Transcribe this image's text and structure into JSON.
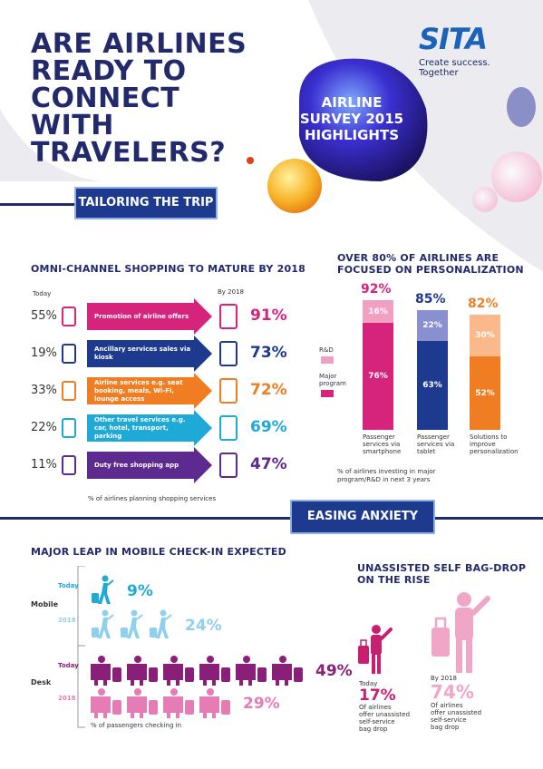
{
  "header": {
    "title_lines": [
      "ARE AIRLINES",
      "READY TO CONNECT",
      "WITH TRAVELERS?"
    ],
    "logo_name": "SITA",
    "logo_tagline": "Create success. Together",
    "bubble_lines": [
      "AIRLINE",
      "SURVEY 2015",
      "HIGHLIGHTS"
    ]
  },
  "colors": {
    "navy": "#232a6b",
    "pink": "#d6247c",
    "blue": "#1d3a8f",
    "orange": "#f07d22",
    "cyan": "#1fa9d6",
    "purple": "#5d2a8f",
    "light_pink": "#f2a0c2"
  },
  "section1": {
    "pill": "TAILORING THE TRIP",
    "omni": {
      "heading": "OMNI-CHANNEL SHOPPING TO MATURE BY 2018",
      "today_label": "Today",
      "by2018_label": "By 2018",
      "footnote": "% of airlines planning shopping services",
      "rows": [
        {
          "today": "55%",
          "label": "Promotion of airline offers",
          "by2018": "91%",
          "color": "#d6247c",
          "icon": "smartphone-plane-icon"
        },
        {
          "today": "19%",
          "label": "Ancillary services sales via kiosk",
          "by2018": "73%",
          "color": "#1d3a8f",
          "icon": "kiosk-icon"
        },
        {
          "today": "33%",
          "label": "Airline services e.g. seat booking, meals, Wi-Fi, lounge access",
          "by2018": "72%",
          "color": "#f07d22",
          "icon": "wifi-tablet-icon"
        },
        {
          "today": "22%",
          "label": "Other travel services e.g. car, hotel, transport, parking",
          "by2018": "69%",
          "color": "#1fa9d6",
          "icon": "parking-icon"
        },
        {
          "today": "11%",
          "label": "Duty free shopping app",
          "by2018": "47%",
          "color": "#5d2a8f",
          "icon": "shopping-bag-icon"
        }
      ]
    },
    "personalization": {
      "heading_lines": [
        "OVER 80% OF AIRLINES ARE",
        "FOCUSED ON PERSONALIZATION"
      ],
      "legend": [
        {
          "label": "R&D",
          "color": "#f2a0c2"
        },
        {
          "label": "Major program",
          "color": "#d6247c"
        }
      ],
      "footnote": "% of airlines investing in major program/R&D in next 3 years",
      "bars": [
        {
          "total": "92%",
          "rd": "16%",
          "major": "76%",
          "rd_value": 16,
          "major_value": 76,
          "label": "Passenger services via smartphone",
          "top_color": "#f2a0c2",
          "bottom_color": "#d6247c",
          "text_color": "#d6247c"
        },
        {
          "total": "85%",
          "rd": "22%",
          "major": "63%",
          "rd_value": 22,
          "major_value": 63,
          "label": "Passenger services via tablet",
          "top_color": "#8a8fd0",
          "bottom_color": "#1d3a8f",
          "text_color": "#1d3a8f"
        },
        {
          "total": "82%",
          "rd": "30%",
          "major": "52%",
          "rd_value": 30,
          "major_value": 52,
          "label": "Solutions to improve personalization",
          "top_color": "#f9b98a",
          "bottom_color": "#f07d22",
          "text_color": "#f07d22"
        }
      ]
    }
  },
  "section2": {
    "pill": "EASING ANXIETY",
    "checkin": {
      "heading": "MAJOR LEAP IN MOBILE CHECK-IN EXPECTED",
      "footnote": "% of passengers checking in",
      "groups": [
        {
          "name": "Mobile",
          "rows": [
            {
              "year": "Today",
              "pct": "9%",
              "count": 1,
              "color": "#1fa9d6"
            },
            {
              "year": "2018",
              "pct": "24%",
              "count": 3,
              "color": "#8fd0ec"
            }
          ]
        },
        {
          "name": "Desk",
          "rows": [
            {
              "year": "Today",
              "pct": "49%",
              "count": 6,
              "color": "#8a1f7a"
            },
            {
              "year": "2018",
              "pct": "29%",
              "count": 4,
              "color": "#e57cb6"
            }
          ]
        }
      ]
    },
    "bagdrop": {
      "heading_lines": [
        "UNASSISTED SELF BAG-DROP",
        "ON THE RISE"
      ],
      "today": {
        "label": "Today",
        "pct": "17%",
        "desc": [
          "Of airlines",
          "offer unassisted",
          "self-service",
          "bag drop"
        ]
      },
      "by2018": {
        "label": "By 2018",
        "pct": "74%",
        "desc": [
          "Of airlines",
          "offer unassisted",
          "self-service",
          "bag drop"
        ]
      }
    }
  }
}
